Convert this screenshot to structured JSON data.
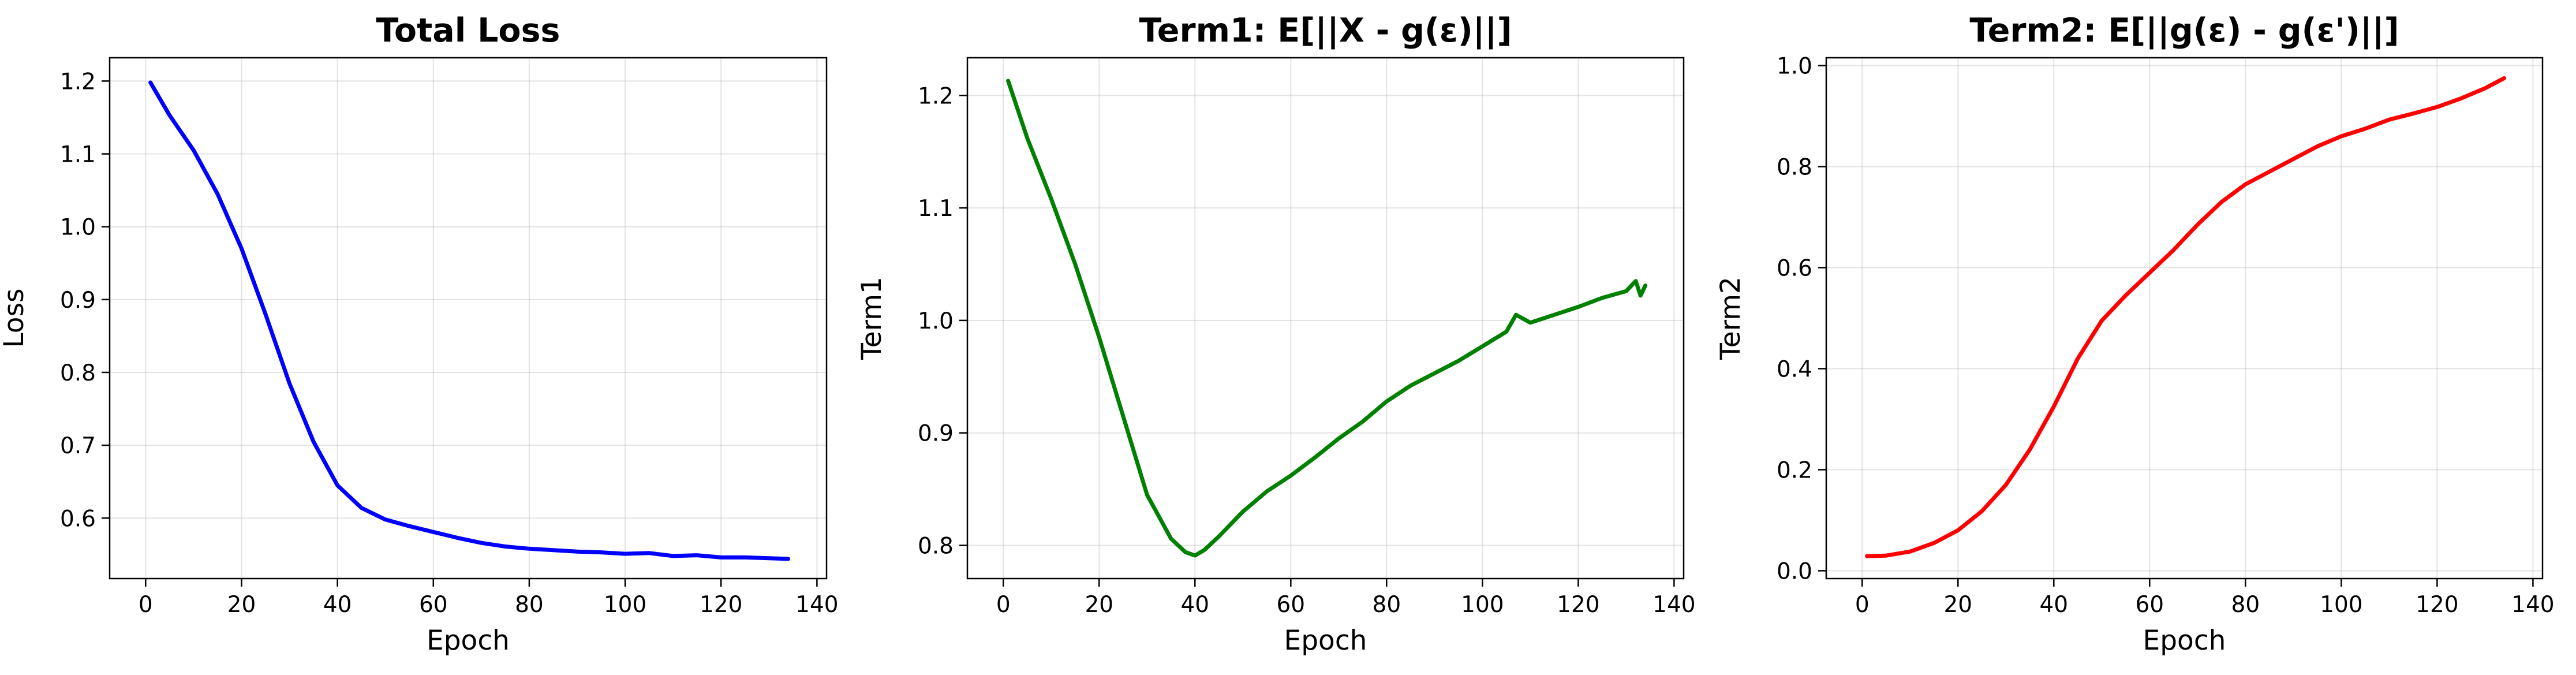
{
  "chart_data": [
    {
      "type": "line",
      "title": "Total Loss",
      "xlabel": "Epoch",
      "ylabel": "Loss",
      "xlim": [
        -7.5,
        142
      ],
      "ylim": [
        0.517,
        1.232
      ],
      "xticks": [
        0,
        20,
        40,
        60,
        80,
        100,
        120,
        140
      ],
      "yticks": [
        0.6,
        0.7,
        0.8,
        0.9,
        1.0,
        1.1,
        1.2
      ],
      "ytick_labels": [
        "0.6",
        "0.7",
        "0.8",
        "0.9",
        "1.0",
        "1.1",
        "1.2"
      ],
      "grid": true,
      "color": "#0000ff",
      "series": [
        {
          "x": [
            1,
            5,
            10,
            15,
            20,
            25,
            30,
            35,
            40,
            45,
            50,
            55,
            60,
            65,
            70,
            75,
            80,
            85,
            90,
            95,
            100,
            105,
            110,
            115,
            120,
            125,
            130,
            134
          ],
          "y": [
            1.198,
            1.153,
            1.105,
            1.045,
            0.97,
            0.88,
            0.785,
            0.705,
            0.645,
            0.614,
            0.598,
            0.589,
            0.581,
            0.573,
            0.566,
            0.561,
            0.558,
            0.556,
            0.554,
            0.553,
            0.551,
            0.552,
            0.548,
            0.549,
            0.546,
            0.546,
            0.545,
            0.544
          ]
        }
      ]
    },
    {
      "type": "line",
      "title": "Term1: E[||X - g(ε)||]",
      "xlabel": "Epoch",
      "ylabel": "Term1",
      "xlim": [
        -7.5,
        142
      ],
      "ylim": [
        0.7705,
        1.2335
      ],
      "xticks": [
        0,
        20,
        40,
        60,
        80,
        100,
        120,
        140
      ],
      "yticks": [
        0.8,
        0.9,
        1.0,
        1.1,
        1.2
      ],
      "ytick_labels": [
        "0.8",
        "0.9",
        "1.0",
        "1.1",
        "1.2"
      ],
      "grid": true,
      "color": "#008000",
      "series": [
        {
          "x": [
            1,
            5,
            10,
            15,
            20,
            25,
            30,
            35,
            38,
            40,
            42,
            45,
            50,
            55,
            60,
            65,
            70,
            75,
            80,
            85,
            90,
            95,
            100,
            105,
            107,
            110,
            115,
            120,
            125,
            130,
            132,
            133,
            134
          ],
          "y": [
            1.213,
            1.162,
            1.108,
            1.05,
            0.985,
            0.915,
            0.845,
            0.806,
            0.794,
            0.791,
            0.796,
            0.808,
            0.83,
            0.848,
            0.862,
            0.878,
            0.895,
            0.91,
            0.928,
            0.942,
            0.953,
            0.964,
            0.977,
            0.99,
            1.005,
            0.998,
            1.005,
            1.012,
            1.02,
            1.026,
            1.035,
            1.022,
            1.031
          ]
        }
      ]
    },
    {
      "type": "line",
      "title": "Term2: E[||g(ε) - g(ε')||]",
      "xlabel": "Epoch",
      "ylabel": "Term2",
      "xlim": [
        -7.5,
        142
      ],
      "ylim": [
        -0.0155,
        1.0155
      ],
      "xticks": [
        0,
        20,
        40,
        60,
        80,
        100,
        120,
        140
      ],
      "yticks": [
        0.0,
        0.2,
        0.4,
        0.6,
        0.8,
        1.0
      ],
      "ytick_labels": [
        "0.0",
        "0.2",
        "0.4",
        "0.6",
        "0.8",
        "1.0"
      ],
      "grid": true,
      "color": "#ff0000",
      "series": [
        {
          "x": [
            1,
            5,
            10,
            15,
            20,
            25,
            30,
            35,
            40,
            45,
            50,
            55,
            60,
            65,
            70,
            75,
            80,
            85,
            90,
            95,
            100,
            105,
            110,
            115,
            120,
            125,
            130,
            134
          ],
          "y": [
            0.029,
            0.03,
            0.038,
            0.055,
            0.08,
            0.118,
            0.17,
            0.24,
            0.325,
            0.42,
            0.495,
            0.545,
            0.59,
            0.635,
            0.685,
            0.73,
            0.765,
            0.79,
            0.815,
            0.84,
            0.86,
            0.875,
            0.893,
            0.905,
            0.918,
            0.935,
            0.955,
            0.975
          ]
        }
      ]
    }
  ]
}
